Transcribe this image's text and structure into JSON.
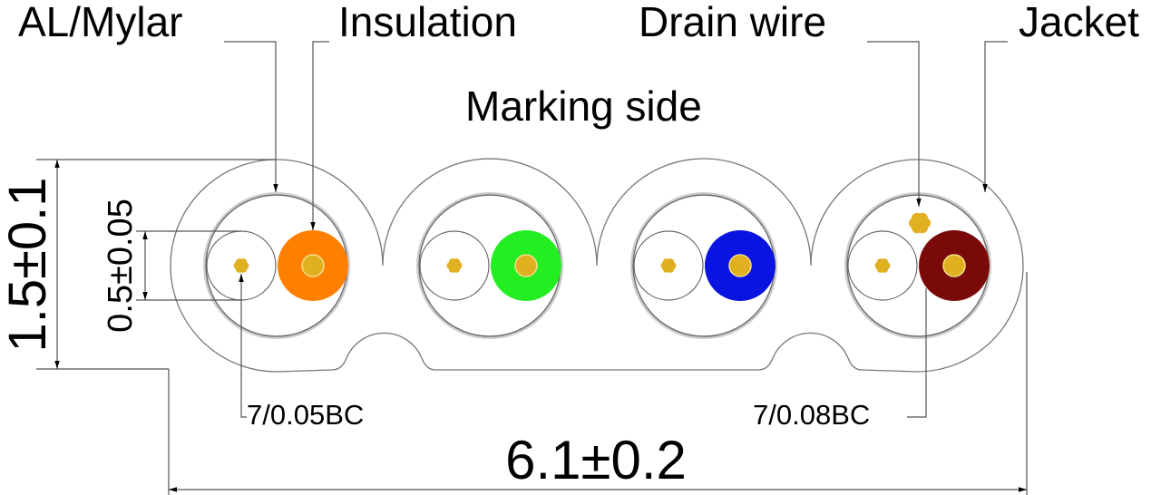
{
  "labels": {
    "al_mylar": "AL/Mylar",
    "insulation": "Insulation",
    "drain_wire": "Drain wire",
    "jacket": "Jacket",
    "marking_side": "Marking side",
    "conductor_left": "7/0.05BC",
    "conductor_right": "7/0.08BC"
  },
  "dimensions": {
    "height": "1.5±0.1",
    "conductor_diameter": "0.5±0.05",
    "width": "6.1±0.2"
  },
  "colors": {
    "pair1": "#ff8000",
    "pair2": "#22ee22",
    "pair3": "#0a14e0",
    "pair4": "#7a0a0a",
    "copper": "#e0b020"
  }
}
